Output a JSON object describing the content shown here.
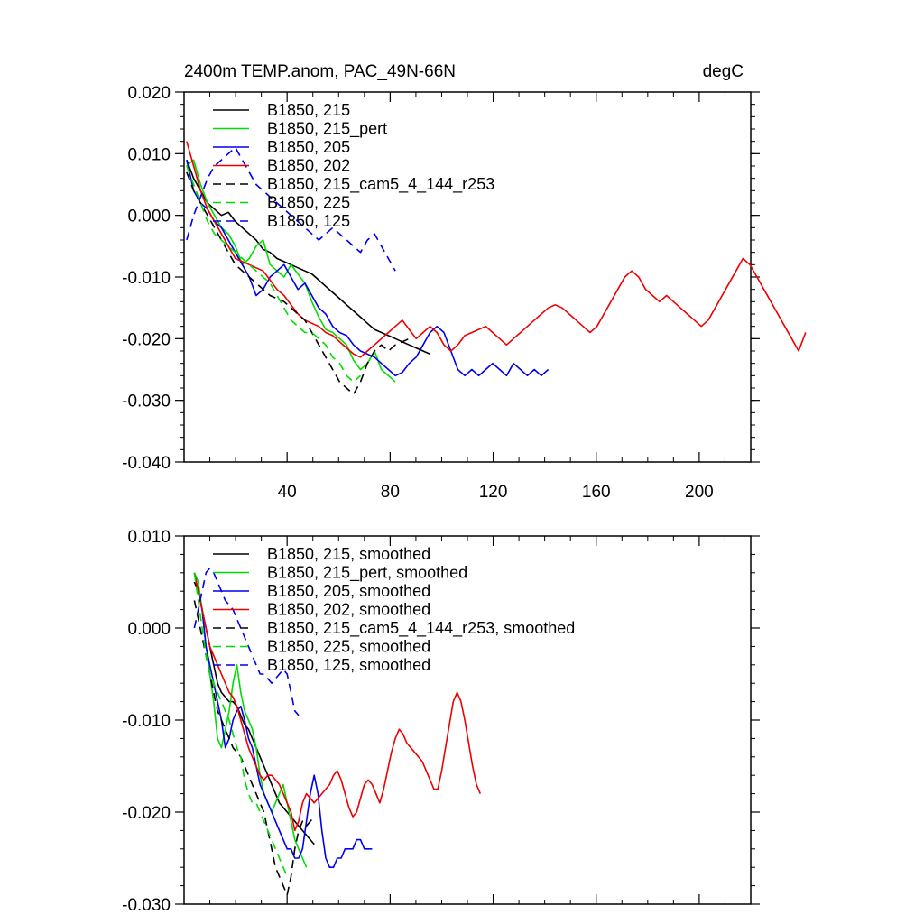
{
  "chart_data": [
    {
      "type": "line",
      "title": "2400m TEMP.anom, PAC_49N-66N",
      "units": "degC",
      "xlabel": "",
      "ylabel": "",
      "xlim": [
        0,
        220
      ],
      "ylim": [
        -0.04,
        0.02
      ],
      "xticks": [
        40,
        80,
        120,
        160,
        200
      ],
      "xtick_labels": [
        "40",
        "80",
        "120",
        "160",
        "200"
      ],
      "yticks": [
        0.02,
        0.01,
        0.0,
        -0.01,
        -0.02,
        -0.03,
        -0.04
      ],
      "ytick_labels": [
        "0.020",
        "0.010",
        "0.000",
        "-0.010",
        "-0.020",
        "-0.030",
        "-0.040"
      ],
      "legend": "top-left",
      "series": [
        {
          "name": "B1850, 215",
          "color": "#000000",
          "dash": "solid",
          "x_start": 1,
          "values": [
            0.009,
            0.006,
            0.004,
            0.002,
            0.001,
            0.0,
            0.0005,
            -0.001,
            -0.002,
            -0.003,
            -0.004,
            -0.0055,
            -0.006,
            -0.007,
            -0.0075,
            -0.008,
            -0.0085,
            -0.009,
            -0.0095,
            -0.0105,
            -0.0115,
            -0.0125,
            -0.0135,
            -0.0145,
            -0.0155,
            -0.0165,
            -0.0175,
            -0.0185,
            -0.019,
            -0.0195,
            -0.02,
            -0.0205,
            -0.021,
            -0.0215,
            -0.022,
            -0.0225
          ]
        },
        {
          "name": "B1850, 215_pert",
          "color": "#00dd00",
          "dash": "solid",
          "x_start": 1,
          "values": [
            0.008,
            0.009,
            0.005,
            0.002,
            0.0,
            -0.002,
            -0.003,
            -0.005,
            -0.008,
            -0.007,
            -0.005,
            -0.004,
            -0.008,
            -0.009,
            -0.01,
            -0.008,
            -0.0095,
            -0.011,
            -0.014,
            -0.0165,
            -0.0185,
            -0.019,
            -0.02,
            -0.021,
            -0.0235,
            -0.025,
            -0.024,
            -0.022,
            -0.025,
            -0.026,
            -0.027
          ]
        },
        {
          "name": "B1850, 205",
          "color": "#0000ee",
          "dash": "solid",
          "x_start": 1,
          "values": [
            0.009,
            0.004,
            0.002,
            0.001,
            -0.001,
            -0.002,
            -0.004,
            -0.006,
            -0.008,
            -0.01,
            -0.013,
            -0.012,
            -0.01,
            -0.009,
            -0.008,
            -0.01,
            -0.012,
            -0.011,
            -0.013,
            -0.015,
            -0.016,
            -0.018,
            -0.019,
            -0.0195,
            -0.021,
            -0.022,
            -0.0225,
            -0.023,
            -0.024,
            -0.025,
            -0.026,
            -0.0255,
            -0.024,
            -0.023,
            -0.021,
            -0.019,
            -0.018,
            -0.019,
            -0.022,
            -0.025,
            -0.026,
            -0.025,
            -0.026,
            -0.025,
            -0.024,
            -0.025,
            -0.026,
            -0.024,
            -0.025,
            -0.026,
            -0.025,
            -0.026,
            -0.025
          ]
        },
        {
          "name": "B1850, 202",
          "color": "#ee0000",
          "dash": "solid",
          "x_start": 1,
          "values": [
            0.012,
            0.008,
            0.004,
            0.001,
            -0.001,
            -0.003,
            -0.005,
            -0.007,
            -0.0075,
            -0.008,
            -0.0085,
            -0.009,
            -0.0105,
            -0.012,
            -0.013,
            -0.0145,
            -0.016,
            -0.017,
            -0.0175,
            -0.018,
            -0.019,
            -0.0195,
            -0.0205,
            -0.0215,
            -0.0225,
            -0.023,
            -0.022,
            -0.021,
            -0.02,
            -0.019,
            -0.018,
            -0.017,
            -0.0185,
            -0.02,
            -0.019,
            -0.018,
            -0.019,
            -0.021,
            -0.022,
            -0.021,
            -0.0195,
            -0.019,
            -0.0185,
            -0.018,
            -0.019,
            -0.02,
            -0.021,
            -0.02,
            -0.019,
            -0.018,
            -0.017,
            -0.016,
            -0.015,
            -0.0145,
            -0.015,
            -0.016,
            -0.017,
            -0.018,
            -0.019,
            -0.018,
            -0.016,
            -0.014,
            -0.012,
            -0.01,
            -0.009,
            -0.01,
            -0.012,
            -0.013,
            -0.014,
            -0.013,
            -0.014,
            -0.015,
            -0.016,
            -0.017,
            -0.018,
            -0.017,
            -0.015,
            -0.013,
            -0.011,
            -0.009,
            -0.007,
            -0.008,
            -0.01,
            -0.012,
            -0.014,
            -0.016,
            -0.018,
            -0.02,
            -0.022,
            -0.019
          ]
        },
        {
          "name": "B1850, 215_cam5_4_144_r253",
          "color": "#000000",
          "dash": "dashed",
          "x_start": 1,
          "values": [
            0.007,
            0.004,
            0.002,
            0.0,
            -0.002,
            -0.004,
            -0.006,
            -0.008,
            -0.009,
            -0.01,
            -0.011,
            -0.012,
            -0.013,
            -0.0135,
            -0.014,
            -0.015,
            -0.016,
            -0.017,
            -0.019,
            -0.021,
            -0.023,
            -0.025,
            -0.027,
            -0.028,
            -0.029,
            -0.027,
            -0.024,
            -0.022,
            -0.021,
            -0.022,
            -0.021,
            -0.0205,
            -0.02
          ]
        },
        {
          "name": "B1850, 225",
          "color": "#00dd00",
          "dash": "dashed",
          "x_start": 1,
          "values": [
            0.008,
            0.005,
            0.002,
            -0.001,
            -0.003,
            -0.004,
            -0.005,
            -0.006,
            -0.007,
            -0.008,
            -0.009,
            -0.01,
            -0.011,
            -0.013,
            -0.015,
            -0.017,
            -0.018,
            -0.019,
            -0.019,
            -0.02,
            -0.021,
            -0.023,
            -0.024,
            -0.026,
            -0.027,
            -0.026
          ]
        },
        {
          "name": "B1850, 125",
          "color": "#0000ee",
          "dash": "dashed",
          "x_start": 1,
          "values": [
            -0.004,
            0.0,
            0.003,
            0.006,
            0.008,
            0.009,
            0.01,
            0.011,
            0.009,
            0.007,
            0.005,
            0.004,
            0.003,
            0.002,
            0.001,
            0.0,
            -0.001,
            -0.002,
            -0.003,
            -0.004,
            -0.003,
            -0.002,
            -0.003,
            -0.004,
            -0.005,
            -0.006,
            -0.004,
            -0.003,
            -0.005,
            -0.007,
            -0.009
          ]
        }
      ]
    },
    {
      "type": "line",
      "title": "",
      "xlabel": "",
      "ylabel": "",
      "xlim": [
        0,
        220
      ],
      "ylim": [
        -0.03,
        0.01
      ],
      "xticks": [
        40,
        80,
        120,
        160,
        200
      ],
      "xtick_labels": [],
      "yticks": [
        0.01,
        0.0,
        -0.01,
        -0.02,
        -0.03
      ],
      "ytick_labels": [
        "0.010",
        "0.000",
        "-0.010",
        "-0.020",
        "-0.030"
      ],
      "legend": "top-left",
      "series": [
        {
          "name": "B1850, 215, smoothed",
          "color": "#000000",
          "dash": "solid",
          "x_start": 4,
          "values": [
            0.005,
            0.004,
            0.002,
            0.0,
            -0.002,
            -0.004,
            -0.006,
            -0.007,
            -0.0075,
            -0.008,
            -0.008,
            -0.0085,
            -0.0095,
            -0.0105,
            -0.011,
            -0.012,
            -0.013,
            -0.014,
            -0.015,
            -0.016,
            -0.017,
            -0.018,
            -0.019,
            -0.0195,
            -0.02,
            -0.0205,
            -0.021,
            -0.0215,
            -0.022,
            -0.0225,
            -0.023,
            -0.0235
          ]
        },
        {
          "name": "B1850, 215_pert, smoothed",
          "color": "#00dd00",
          "dash": "solid",
          "x_start": 4,
          "values": [
            0.006,
            0.005,
            0.002,
            -0.002,
            -0.005,
            -0.008,
            -0.012,
            -0.013,
            -0.011,
            -0.009,
            -0.006,
            -0.004,
            -0.007,
            -0.009,
            -0.01,
            -0.011,
            -0.013,
            -0.016,
            -0.018,
            -0.019,
            -0.02,
            -0.019,
            -0.018,
            -0.017,
            -0.019,
            -0.021,
            -0.023,
            -0.024,
            -0.025,
            -0.026
          ]
        },
        {
          "name": "B1850, 205, smoothed",
          "color": "#0000ee",
          "dash": "solid",
          "x_start": 4,
          "values": [
            0.006,
            0.004,
            0.002,
            -0.002,
            -0.004,
            -0.006,
            -0.008,
            -0.01,
            -0.013,
            -0.012,
            -0.01,
            -0.009,
            -0.0085,
            -0.01,
            -0.012,
            -0.013,
            -0.015,
            -0.017,
            -0.018,
            -0.019,
            -0.02,
            -0.021,
            -0.022,
            -0.023,
            -0.024,
            -0.024,
            -0.025,
            -0.025,
            -0.024,
            -0.021,
            -0.018,
            -0.016,
            -0.018,
            -0.022,
            -0.025,
            -0.026,
            -0.026,
            -0.025,
            -0.025,
            -0.024,
            -0.024,
            -0.024,
            -0.023,
            -0.023,
            -0.024,
            -0.024,
            -0.024
          ]
        },
        {
          "name": "B1850, 202, smoothed",
          "color": "#ee0000",
          "dash": "solid",
          "x_start": 4,
          "values": [
            0.006,
            0.004,
            0.002,
            0.0,
            -0.002,
            -0.003,
            -0.004,
            -0.005,
            -0.006,
            -0.007,
            -0.0075,
            -0.0085,
            -0.01,
            -0.0115,
            -0.013,
            -0.014,
            -0.015,
            -0.016,
            -0.0165,
            -0.016,
            -0.016,
            -0.0165,
            -0.017,
            -0.018,
            -0.019,
            -0.02,
            -0.022,
            -0.021,
            -0.019,
            -0.018,
            -0.0185,
            -0.019,
            -0.0185,
            -0.018,
            -0.0175,
            -0.017,
            -0.016,
            -0.0155,
            -0.0165,
            -0.018,
            -0.0195,
            -0.0205,
            -0.02,
            -0.0185,
            -0.017,
            -0.0165,
            -0.017,
            -0.018,
            -0.019,
            -0.0175,
            -0.0155,
            -0.0135,
            -0.012,
            -0.011,
            -0.0115,
            -0.0125,
            -0.013,
            -0.0135,
            -0.014,
            -0.0145,
            -0.0155,
            -0.0165,
            -0.0175,
            -0.0175,
            -0.0155,
            -0.013,
            -0.0105,
            -0.008,
            -0.007,
            -0.008,
            -0.01,
            -0.0125,
            -0.015,
            -0.017,
            -0.018
          ]
        },
        {
          "name": "B1850, 215_cam5_4_144_r253, smoothed",
          "color": "#000000",
          "dash": "dashed",
          "x_start": 4,
          "values": [
            0.003,
            0.001,
            -0.001,
            -0.003,
            -0.005,
            -0.007,
            -0.009,
            -0.01,
            -0.011,
            -0.012,
            -0.013,
            -0.0135,
            -0.014,
            -0.015,
            -0.016,
            -0.017,
            -0.018,
            -0.019,
            -0.02,
            -0.022,
            -0.024,
            -0.026,
            -0.027,
            -0.028,
            -0.029,
            -0.027,
            -0.024,
            -0.022,
            -0.021,
            -0.0215,
            -0.021,
            -0.0205
          ]
        },
        {
          "name": "B1850, 225, smoothed",
          "color": "#00dd00",
          "dash": "dashed",
          "x_start": 4,
          "values": [
            0.006,
            0.003,
            0.0,
            -0.003,
            -0.005,
            -0.006,
            -0.007,
            -0.008,
            -0.009,
            -0.01,
            -0.0115,
            -0.013,
            -0.014,
            -0.0165,
            -0.018,
            -0.019,
            -0.019,
            -0.02,
            -0.021,
            -0.022,
            -0.023,
            -0.024,
            -0.025,
            -0.026,
            -0.027
          ]
        },
        {
          "name": "B1850, 125, smoothed",
          "color": "#0000ee",
          "dash": "dashed",
          "x_start": 4,
          "values": [
            0.0,
            0.002,
            0.004,
            0.006,
            0.0065,
            0.006,
            0.005,
            0.004,
            0.003,
            0.0025,
            0.002,
            0.001,
            0.0,
            -0.001,
            -0.002,
            -0.003,
            -0.004,
            -0.005,
            -0.005,
            -0.0055,
            -0.006,
            -0.0055,
            -0.005,
            -0.0045,
            -0.005,
            -0.007,
            -0.009,
            -0.0095
          ]
        }
      ]
    }
  ]
}
